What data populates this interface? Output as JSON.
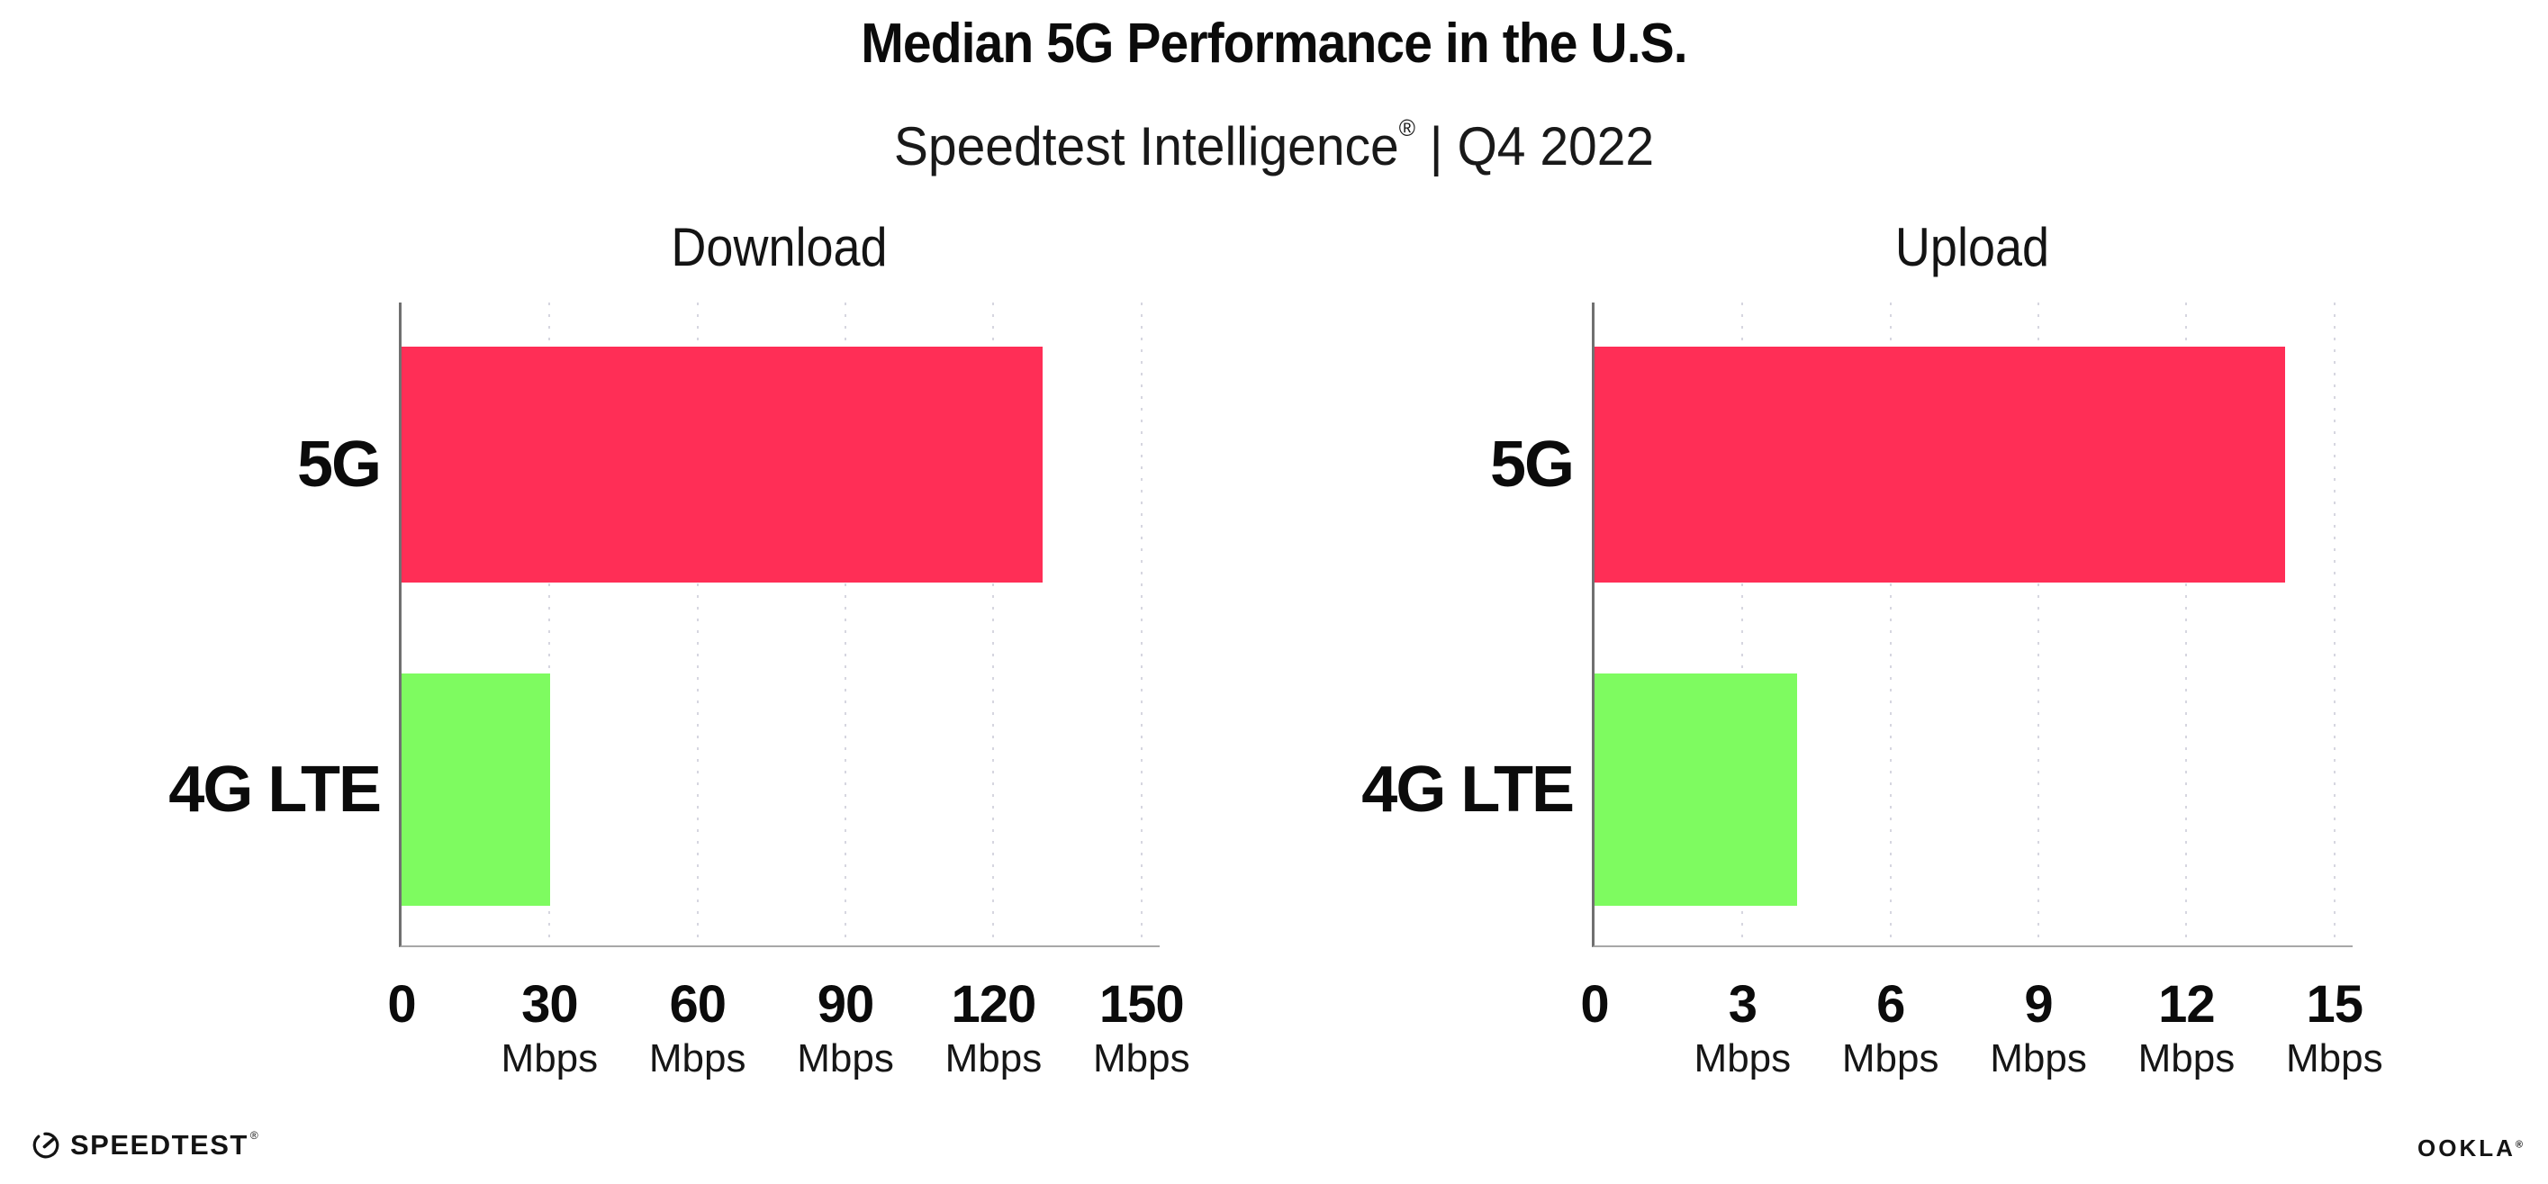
{
  "header": {
    "title": "Median 5G Performance in the U.S.",
    "subtitle": {
      "brand": "Speedtest Intelligence",
      "registered": "®",
      "rest": " | Q4 2022"
    }
  },
  "chart_data": {
    "type": "bar",
    "orientation": "horizontal",
    "title": "Median 5G Performance in the U.S.",
    "subtitle": "Speedtest Intelligence | Q4 2022",
    "categories": [
      "5G",
      "4G LTE"
    ],
    "series_colors": [
      "#ff2e56",
      "#7efb60"
    ],
    "unit": "Mbps",
    "legend": "none",
    "grid": "vertical-dotted",
    "charts": [
      {
        "title": "Download",
        "xlim": [
          0,
          150
        ],
        "ticks": [
          0,
          30,
          60,
          90,
          120,
          150
        ],
        "values": [
          130,
          30.2
        ]
      },
      {
        "title": "Upload",
        "xlim": [
          0,
          15
        ],
        "ticks": [
          0,
          3,
          6,
          9,
          12,
          15
        ],
        "values": [
          14,
          4.1
        ]
      }
    ]
  },
  "footer": {
    "speedtest_wordmark": "SPEEDTEST",
    "ookla_wordmark": "OOKLA",
    "registered_mark": "®"
  }
}
